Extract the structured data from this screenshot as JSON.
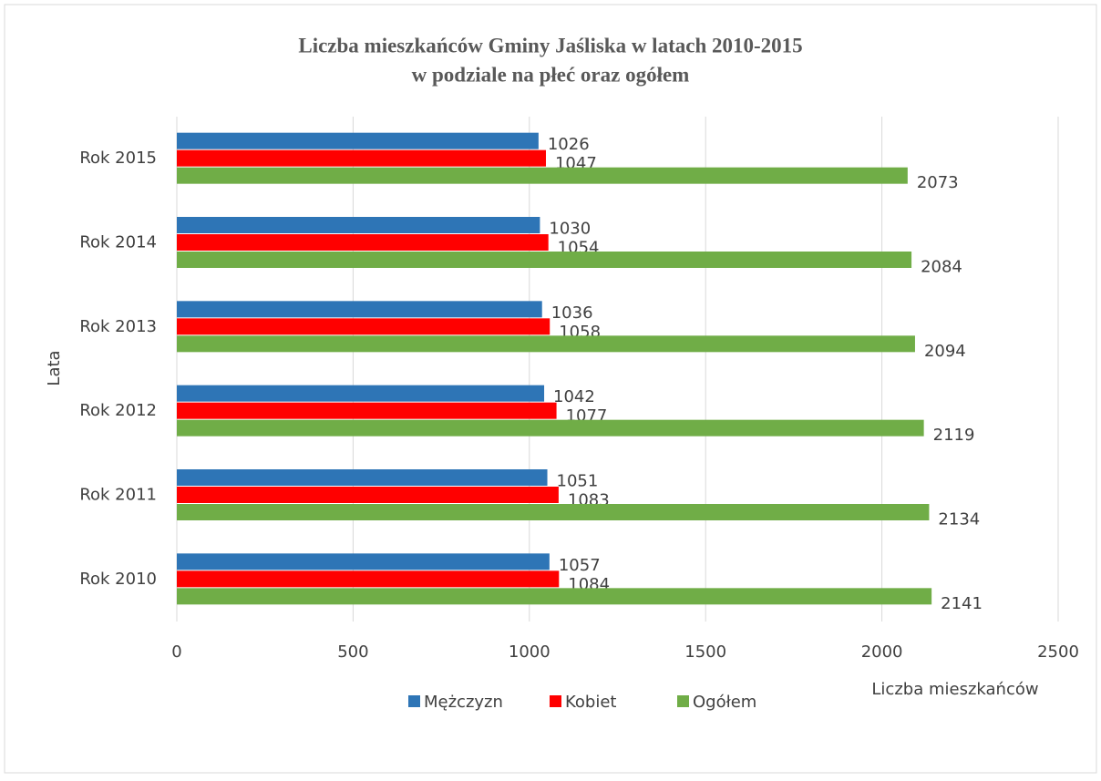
{
  "chart_data": {
    "type": "barh",
    "title": "Liczba mieszkańców Gminy Jaśliska w latach 2010-2015",
    "subtitle": "w podziale na płeć oraz ogółem",
    "x_label": "Liczba mieszkańców",
    "y_label": "Lata",
    "categories": [
      "Rok 2010",
      "Rok 2011",
      "Rok 2012",
      "Rok 2013",
      "Rok 2014",
      "Rok 2015"
    ],
    "series": [
      {
        "name": "Mężczyzn",
        "color": "#2e75b6",
        "values": [
          1057,
          1051,
          1042,
          1036,
          1030,
          1026
        ]
      },
      {
        "name": "Kobiet",
        "color": "#ff0000",
        "values": [
          1084,
          1083,
          1077,
          1058,
          1054,
          1047
        ]
      },
      {
        "name": "Ogółem",
        "color": "#70ad47",
        "values": [
          2141,
          2134,
          2119,
          2094,
          2084,
          2073
        ]
      }
    ],
    "xlim": [
      0,
      2500
    ],
    "xticks": [
      0,
      500,
      1000,
      1500,
      2000,
      2500
    ],
    "grid": true,
    "legend": "bottom"
  }
}
